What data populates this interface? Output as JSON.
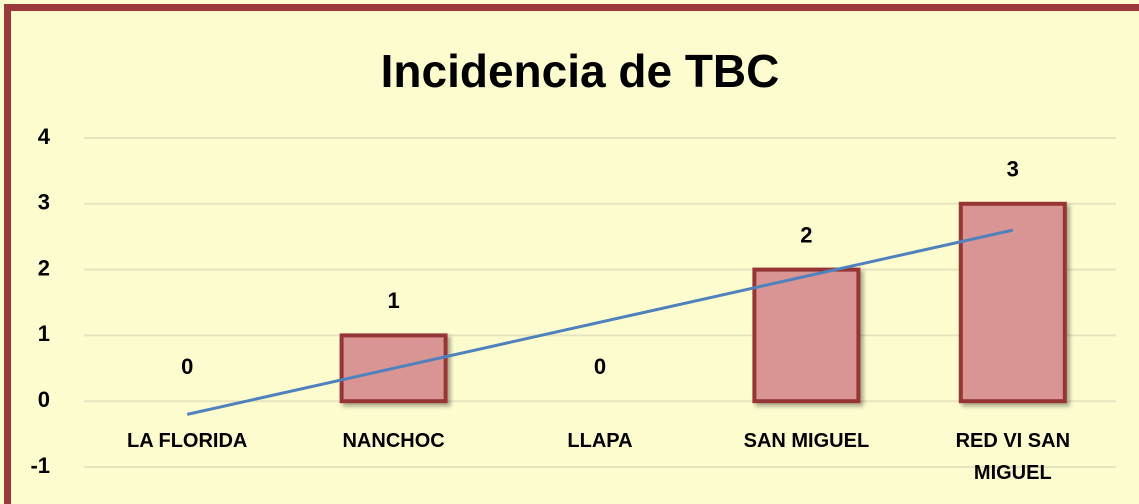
{
  "chart_data": {
    "type": "bar",
    "title": "Incidencia de TBC",
    "categories": [
      "LA FLORIDA",
      "NANCHOC",
      "LLAPA",
      "SAN MIGUEL",
      "RED VI SAN MIGUEL"
    ],
    "values": [
      0,
      1,
      0,
      2,
      3
    ],
    "color": "#d99594",
    "trendline": "linear",
    "ylim": [
      -1,
      4
    ],
    "yticks": [
      -1,
      0,
      1,
      2,
      3,
      4
    ],
    "grid": true
  }
}
